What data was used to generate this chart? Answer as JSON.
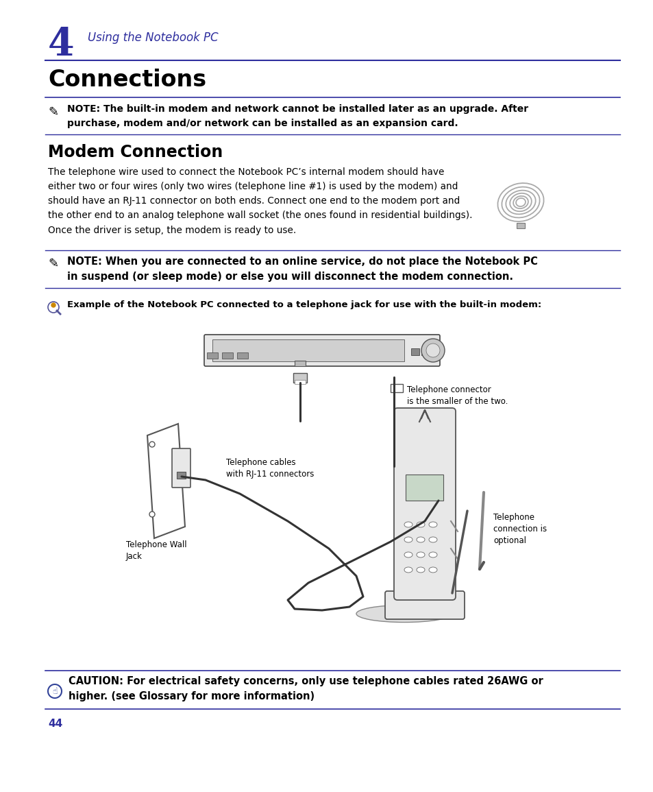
{
  "bg_color": "#ffffff",
  "blue_dark": "#2e2e9e",
  "line_color": "#2e2e9e",
  "chapter_num": "4",
  "chapter_title": "Using the Notebook PC",
  "page_title": "Connections",
  "section_title": "Modem Connection",
  "note1_text": "NOTE: The built-in modem and network cannot be installed later as an upgrade. After\npurchase, modem and/or network can be installed as an expansion card.",
  "body_text": "The telephone wire used to connect the Notebook PC’s internal modem should have\neither two or four wires (only two wires (telephone line #1) is used by the modem) and\nshould have an RJ-11 connector on both ends. Connect one end to the modem port and\nthe other end to an analog telephone wall socket (the ones found in residential buildings).\nOnce the driver is setup, the modem is ready to use.",
  "note2_text": "NOTE: When you are connected to an online service, do not place the Notebook PC\nin suspend (or sleep mode) or else you will disconnect the modem connection.",
  "example_text": "Example of the Notebook PC connected to a telephone jack for use with the built-in modem:",
  "label_tel_cables": "Telephone cables\nwith RJ-11 connectors",
  "label_tel_wall": "Telephone Wall\nJack",
  "label_tel_connector": "Telephone connector\nis the smaller of the two.",
  "label_tel_optional": "Telephone\nconnection is\noptional",
  "caution_text": "CAUTION: For electrical safety concerns, only use telephone cables rated 26AWG or\nhigher. (see Glossary for more information)",
  "page_num": "44"
}
